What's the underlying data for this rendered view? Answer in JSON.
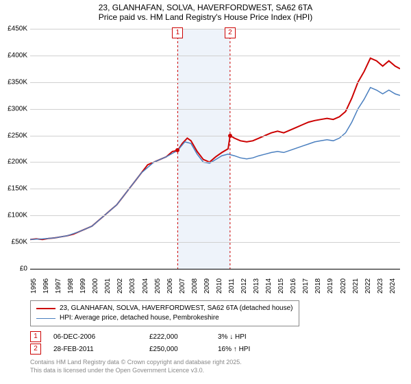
{
  "title_line1": "23, GLANHAFAN, SOLVA, HAVERFORDWEST, SA62 6TA",
  "title_line2": "Price paid vs. HM Land Registry's House Price Index (HPI)",
  "chart": {
    "type": "line",
    "background_color": "#ffffff",
    "grid_color": "#d0d0d0",
    "highlight_color": "#eef3fa",
    "ylim": [
      0,
      450000
    ],
    "ytick_step": 50000,
    "yticks": [
      "£0",
      "£50K",
      "£100K",
      "£150K",
      "£200K",
      "£250K",
      "£300K",
      "£350K",
      "£400K",
      "£450K"
    ],
    "xlim": [
      1995,
      2024.9
    ],
    "xticks": [
      "1995",
      "1996",
      "1997",
      "1998",
      "1999",
      "2000",
      "2001",
      "2002",
      "2003",
      "2004",
      "2005",
      "2006",
      "2007",
      "2008",
      "2009",
      "2010",
      "2011",
      "2012",
      "2013",
      "2014",
      "2015",
      "2016",
      "2017",
      "2018",
      "2019",
      "2020",
      "2021",
      "2022",
      "2023",
      "2024"
    ],
    "highlight_band": {
      "start": 2006.93,
      "end": 2011.16
    },
    "series": [
      {
        "name": "23, GLANHAFAN, SOLVA, HAVERFORDWEST, SA62 6TA (detached house)",
        "color": "#cc0000",
        "line_width": 2,
        "data": [
          [
            1995,
            55000
          ],
          [
            1995.5,
            56000
          ],
          [
            1996,
            55000
          ],
          [
            1996.5,
            57000
          ],
          [
            1997,
            58000
          ],
          [
            1997.5,
            60000
          ],
          [
            1998,
            62000
          ],
          [
            1998.5,
            65000
          ],
          [
            1999,
            70000
          ],
          [
            1999.5,
            75000
          ],
          [
            2000,
            80000
          ],
          [
            2000.5,
            90000
          ],
          [
            2001,
            100000
          ],
          [
            2001.5,
            110000
          ],
          [
            2002,
            120000
          ],
          [
            2002.5,
            135000
          ],
          [
            2003,
            150000
          ],
          [
            2003.5,
            165000
          ],
          [
            2004,
            180000
          ],
          [
            2004.5,
            195000
          ],
          [
            2005,
            200000
          ],
          [
            2005.5,
            205000
          ],
          [
            2006,
            210000
          ],
          [
            2006.5,
            220000
          ],
          [
            2006.93,
            222000
          ],
          [
            2007.3,
            235000
          ],
          [
            2007.7,
            245000
          ],
          [
            2008,
            240000
          ],
          [
            2008.5,
            220000
          ],
          [
            2009,
            205000
          ],
          [
            2009.5,
            200000
          ],
          [
            2010,
            210000
          ],
          [
            2010.5,
            218000
          ],
          [
            2011,
            225000
          ],
          [
            2011.16,
            250000
          ],
          [
            2011.5,
            245000
          ],
          [
            2012,
            240000
          ],
          [
            2012.5,
            238000
          ],
          [
            2013,
            240000
          ],
          [
            2013.5,
            245000
          ],
          [
            2014,
            250000
          ],
          [
            2014.5,
            255000
          ],
          [
            2015,
            258000
          ],
          [
            2015.5,
            255000
          ],
          [
            2016,
            260000
          ],
          [
            2016.5,
            265000
          ],
          [
            2017,
            270000
          ],
          [
            2017.5,
            275000
          ],
          [
            2018,
            278000
          ],
          [
            2018.5,
            280000
          ],
          [
            2019,
            282000
          ],
          [
            2019.5,
            280000
          ],
          [
            2020,
            285000
          ],
          [
            2020.5,
            295000
          ],
          [
            2021,
            320000
          ],
          [
            2021.5,
            350000
          ],
          [
            2022,
            370000
          ],
          [
            2022.5,
            395000
          ],
          [
            2023,
            390000
          ],
          [
            2023.5,
            380000
          ],
          [
            2024,
            390000
          ],
          [
            2024.5,
            380000
          ],
          [
            2024.9,
            375000
          ]
        ]
      },
      {
        "name": "HPI: Average price, detached house, Pembrokeshire",
        "color": "#4a7fbf",
        "line_width": 1.5,
        "data": [
          [
            1995,
            55000
          ],
          [
            1996,
            56000
          ],
          [
            1997,
            58000
          ],
          [
            1998,
            62000
          ],
          [
            1999,
            70000
          ],
          [
            2000,
            80000
          ],
          [
            2001,
            100000
          ],
          [
            2002,
            120000
          ],
          [
            2003,
            150000
          ],
          [
            2004,
            180000
          ],
          [
            2005,
            200000
          ],
          [
            2006,
            210000
          ],
          [
            2006.93,
            222000
          ],
          [
            2007.5,
            238000
          ],
          [
            2008,
            235000
          ],
          [
            2008.5,
            215000
          ],
          [
            2009,
            200000
          ],
          [
            2009.5,
            198000
          ],
          [
            2010,
            205000
          ],
          [
            2010.5,
            212000
          ],
          [
            2011,
            215000
          ],
          [
            2011.5,
            212000
          ],
          [
            2012,
            208000
          ],
          [
            2012.5,
            206000
          ],
          [
            2013,
            208000
          ],
          [
            2013.5,
            212000
          ],
          [
            2014,
            215000
          ],
          [
            2014.5,
            218000
          ],
          [
            2015,
            220000
          ],
          [
            2015.5,
            218000
          ],
          [
            2016,
            222000
          ],
          [
            2016.5,
            226000
          ],
          [
            2017,
            230000
          ],
          [
            2017.5,
            234000
          ],
          [
            2018,
            238000
          ],
          [
            2018.5,
            240000
          ],
          [
            2019,
            242000
          ],
          [
            2019.5,
            240000
          ],
          [
            2020,
            245000
          ],
          [
            2020.5,
            255000
          ],
          [
            2021,
            275000
          ],
          [
            2021.5,
            300000
          ],
          [
            2022,
            318000
          ],
          [
            2022.5,
            340000
          ],
          [
            2023,
            335000
          ],
          [
            2023.5,
            328000
          ],
          [
            2024,
            335000
          ],
          [
            2024.5,
            328000
          ],
          [
            2024.9,
            325000
          ]
        ]
      }
    ],
    "sale_markers": [
      {
        "n": "1",
        "x": 2006.93,
        "y": 222000
      },
      {
        "n": "2",
        "x": 2011.16,
        "y": 250000
      }
    ]
  },
  "legend": {
    "items": [
      {
        "color": "#cc0000",
        "width": 2,
        "label": "23, GLANHAFAN, SOLVA, HAVERFORDWEST, SA62 6TA (detached house)"
      },
      {
        "color": "#4a7fbf",
        "width": 1.5,
        "label": "HPI: Average price, detached house, Pembrokeshire"
      }
    ]
  },
  "sales": [
    {
      "n": "1",
      "date": "06-DEC-2006",
      "price": "£222,000",
      "pct": "3% ↓ HPI"
    },
    {
      "n": "2",
      "date": "28-FEB-2011",
      "price": "£250,000",
      "pct": "16% ↑ HPI"
    }
  ],
  "license_line1": "Contains HM Land Registry data © Crown copyright and database right 2025.",
  "license_line2": "This data is licensed under the Open Government Licence v3.0."
}
